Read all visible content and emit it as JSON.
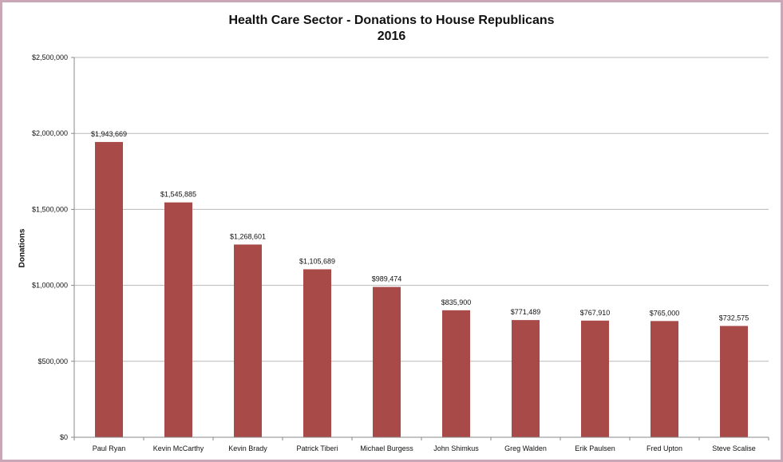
{
  "chart_data": {
    "type": "bar",
    "title_line1": "Health Care Sector - Donations to House Republicans",
    "title_line2": "2016",
    "xlabel": "",
    "ylabel": "Donations",
    "ylim": [
      0,
      2500000
    ],
    "yticks": [
      {
        "value": 0,
        "label": "$0"
      },
      {
        "value": 500000,
        "label": "$500,000"
      },
      {
        "value": 1000000,
        "label": "$1,000,000"
      },
      {
        "value": 1500000,
        "label": "$1,500,000"
      },
      {
        "value": 2000000,
        "label": "$2,000,000"
      },
      {
        "value": 2500000,
        "label": "$2,500,000"
      }
    ],
    "categories": [
      "Paul Ryan",
      "Kevin McCarthy",
      "Kevin Brady",
      "Patrick Tiberi",
      "Michael Burgess",
      "John Shimkus",
      "Greg Walden",
      "Erik Paulsen",
      "Fred Upton",
      "Steve Scalise"
    ],
    "values": [
      1943669,
      1545885,
      1268601,
      1105689,
      989474,
      835900,
      771489,
      767910,
      765000,
      732575
    ],
    "data_labels": [
      "$1,943,669",
      "$1,545,885",
      "$1,268,601",
      "$1,105,689",
      "$989,474",
      "$835,900",
      "$771,489",
      "$767,910",
      "$765,000",
      "$732,575"
    ],
    "grid": true,
    "bar_color": "#a84a48",
    "grid_color": "#b8b8b8",
    "frame_color": "#c9a7b6"
  }
}
